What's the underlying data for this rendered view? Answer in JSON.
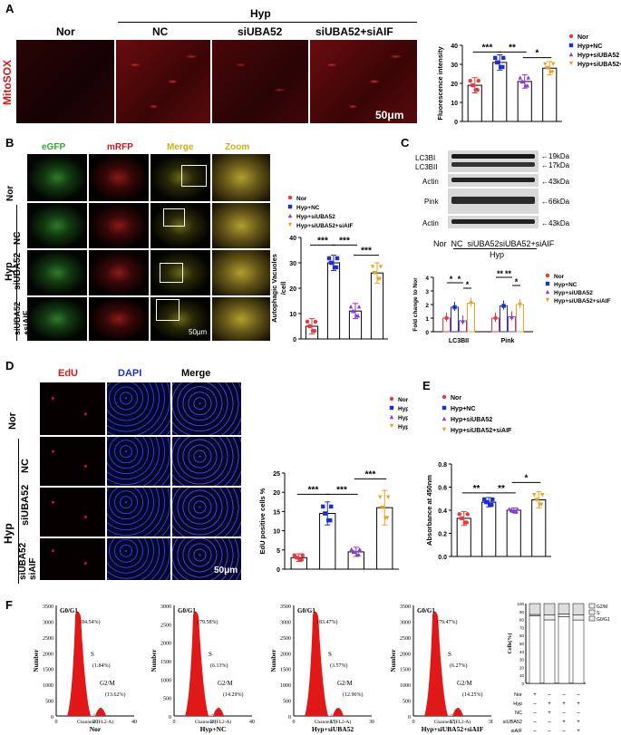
{
  "panel_A": {
    "label": "A",
    "group_hyp": "Hyp",
    "cols": [
      "Nor",
      "NC",
      "siUBA52",
      "siUBA52+siAIF"
    ],
    "row_label": "MitoSOX",
    "scale": "50μm",
    "chart": {
      "ylabel": "Fluorescence intensity",
      "yticks": [
        "0",
        "10",
        "20",
        "30",
        "40"
      ],
      "sig": [
        "***",
        "**",
        "*"
      ]
    }
  },
  "panel_B": {
    "label": "B",
    "cols": [
      "eGFP",
      "mRFP",
      "Merge",
      "Zoom"
    ],
    "rows": [
      "Nor",
      "NC",
      "siUBA52",
      "siUBA52\n+siAIF"
    ],
    "group_hyp": "Hyp",
    "scale": "50μm",
    "chart": {
      "ylabel": "Autophagic Vacuoles\n/cell",
      "yticks": [
        "0",
        "10",
        "20",
        "30",
        "40"
      ],
      "sig": [
        "***",
        "***",
        "***"
      ]
    }
  },
  "panel_C": {
    "label": "C",
    "blot_labels": [
      "LC3BI",
      "LC3BII",
      "Actin",
      "Pink",
      "Actin"
    ],
    "kda": [
      "19kDa",
      "17kDa",
      "43kDa",
      "66kDa",
      "43kDa"
    ],
    "lanes": "Nor  NC  siUBA52siUBA52+siAIF",
    "group": "Hyp",
    "chart": {
      "ylabel": "Fold change to Nor",
      "yticks": [
        "0",
        "1",
        "2",
        "3",
        "4"
      ],
      "groups": [
        "LC3BII",
        "Pink"
      ],
      "sig": [
        "*",
        "*",
        "*",
        "**",
        "**",
        "*"
      ]
    }
  },
  "panel_D": {
    "label": "D",
    "cols": [
      "EdU",
      "DAPI",
      "Merge"
    ],
    "rows": [
      "Nor",
      "NC",
      "siUBA52",
      "siUBA52\nsiAIF"
    ],
    "group_hyp": "Hyp",
    "scale": "50μm",
    "chart": {
      "ylabel": "EdU positive cells %",
      "yticks": [
        "0",
        "5",
        "10",
        "15",
        "20",
        "25"
      ],
      "sig": [
        "***",
        "***",
        "***"
      ]
    }
  },
  "panel_E": {
    "label": "E",
    "chart": {
      "ylabel": "Absorbance at 450nm",
      "yticks": [
        "0.0",
        "0.2",
        "0.4",
        "0.6",
        "0.8"
      ],
      "sig": [
        "**",
        "**",
        "*"
      ]
    }
  },
  "panel_F": {
    "label": "F",
    "histos": [
      {
        "title": "Nor",
        "ymax": "3500",
        "ticks": [
          "0",
          "500",
          "1000",
          "1500",
          "2000",
          "2500",
          "3000",
          "3500"
        ],
        "xmax": "40",
        "g0": "(84.54%)",
        "s": "(1.84%)",
        "g2": "(13.62%)",
        "xlabel": "Channels (FL2-A)"
      },
      {
        "title": "Hyp+NC",
        "ymax": "3000",
        "ticks": [
          "0",
          "500",
          "1000",
          "1500",
          "2000",
          "2500",
          "3000"
        ],
        "xmax": "40",
        "g0": "(79.58%)",
        "s": "(6.13%)",
        "g2": "(14.29%)",
        "xlabel": "Channels (FL2-A)"
      },
      {
        "title": "Hyp+siUBA52",
        "ymax": "3500",
        "ticks": [
          "0",
          "500",
          "1000",
          "1500",
          "2000",
          "2500",
          "3000",
          "3500"
        ],
        "xmax": "30",
        "g0": "(83.47%)",
        "s": "(3.57%)",
        "g2": "(12.96%)",
        "xlabel": "Channels (FL2-A)"
      },
      {
        "title": "Hyp+siUBA52+siAIF",
        "ymax": "3500",
        "ticks": [
          "0",
          "500",
          "1000",
          "1500",
          "2000",
          "2500",
          "3000",
          "3500"
        ],
        "xmax": "30",
        "g0": "(79.47%)",
        "s": "(6.27%)",
        "g2": "(14.25%)",
        "xlabel": "Channels (FL2-A)"
      }
    ],
    "phase_labels": {
      "g0": "G0/G1",
      "s": "S",
      "g2": "G2/M"
    },
    "ylabel": "Number",
    "stack_legend": [
      "G2/M",
      "S",
      "G0/G1"
    ],
    "stack_ylabel": "Cells(%)",
    "stack_yticks": [
      "0",
      "10",
      "20",
      "30",
      "40",
      "50",
      "60",
      "70",
      "80",
      "90",
      "100"
    ],
    "cond_rows": [
      {
        "name": "Nor",
        "vals": [
          "+",
          "–",
          "–",
          "–"
        ]
      },
      {
        "name": "Hyp",
        "vals": [
          "–",
          "+",
          "+",
          "+"
        ]
      },
      {
        "name": "NC",
        "vals": [
          "–",
          "+",
          "–",
          "–"
        ]
      },
      {
        "name": "siUBA52",
        "vals": [
          "–",
          "–",
          "+",
          "+"
        ]
      },
      {
        "name": "siAIF",
        "vals": [
          "–",
          "–",
          "–",
          "+"
        ]
      }
    ]
  },
  "legend": [
    "Nor",
    "Hyp+NC",
    "Hyp+siUBA52",
    "Hyp+siUBA52+siAIF"
  ],
  "legend_colors": [
    "#e83a3a",
    "#1a2fd6",
    "#8a3ad6",
    "#f0a020"
  ],
  "chart_data": [
    {
      "type": "bar",
      "panel": "A",
      "categories": [
        "Nor",
        "Hyp+NC",
        "Hyp+siUBA52",
        "Hyp+siUBA52+siAIF"
      ],
      "values": [
        19,
        31,
        21,
        28
      ],
      "errors": [
        4,
        4,
        3.5,
        3.5
      ],
      "ylim": [
        0,
        40
      ],
      "ylabel": "Fluorescence intensity"
    },
    {
      "type": "bar",
      "panel": "B",
      "categories": [
        "Nor",
        "Hyp+NC",
        "Hyp+siUBA52",
        "Hyp+siUBA52+siAIF"
      ],
      "values": [
        5,
        30,
        11,
        26
      ],
      "errors": [
        3,
        3,
        3,
        4
      ],
      "ylim": [
        0,
        40
      ],
      "ylabel": "Autophagic Vacuoles /cell"
    },
    {
      "type": "bar",
      "panel": "C",
      "categories": [
        "LC3BII",
        "Pink"
      ],
      "series": [
        {
          "name": "Nor",
          "values": [
            1,
            1
          ]
        },
        {
          "name": "Hyp+NC",
          "values": [
            1.8,
            1.9
          ]
        },
        {
          "name": "Hyp+siUBA52",
          "values": [
            0.8,
            1.1
          ]
        },
        {
          "name": "Hyp+siUBA52+siAIF",
          "values": [
            2.1,
            2.0
          ]
        }
      ],
      "ylim": [
        0,
        4
      ],
      "ylabel": "Fold change to Nor"
    },
    {
      "type": "bar",
      "panel": "D",
      "categories": [
        "Nor",
        "Hyp+NC",
        "Hyp+siUBA52",
        "Hyp+siUBA52+siAIF"
      ],
      "values": [
        3,
        14.5,
        4.5,
        16
      ],
      "errors": [
        1,
        3,
        1.2,
        4.5
      ],
      "ylim": [
        0,
        25
      ],
      "ylabel": "EdU positive cells %"
    },
    {
      "type": "bar",
      "panel": "E",
      "categories": [
        "Nor",
        "Hyp+NC",
        "Hyp+siUBA52",
        "Hyp+siUBA52+siAIF"
      ],
      "values": [
        0.33,
        0.47,
        0.4,
        0.49
      ],
      "errors": [
        0.06,
        0.04,
        0.02,
        0.07
      ],
      "ylim": [
        0,
        0.8
      ],
      "ylabel": "Absorbance at 450nm"
    },
    {
      "type": "bar",
      "panel": "F-stack",
      "categories": [
        "Nor",
        "Hyp+NC",
        "Hyp+siUBA52",
        "Hyp+siUBA52+siAIF"
      ],
      "series": [
        {
          "name": "G0/G1",
          "values": [
            84.54,
            79.58,
            83.47,
            79.47
          ]
        },
        {
          "name": "S",
          "values": [
            1.84,
            6.13,
            3.57,
            6.27
          ]
        },
        {
          "name": "G2/M",
          "values": [
            13.62,
            14.29,
            12.96,
            14.25
          ]
        }
      ],
      "ylim": [
        0,
        100
      ],
      "ylabel": "Cells(%)"
    }
  ]
}
